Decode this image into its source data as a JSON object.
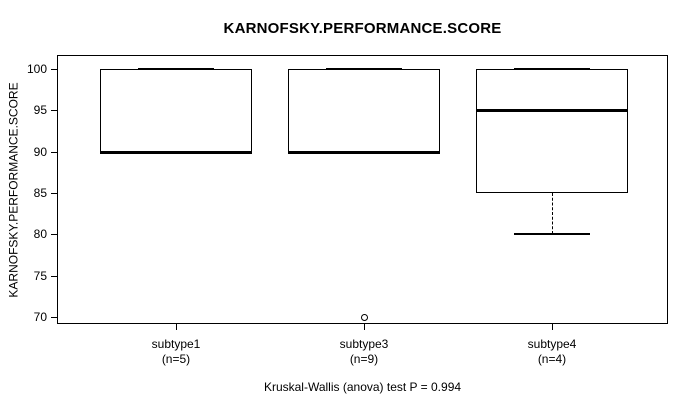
{
  "chart_data": {
    "type": "boxplot",
    "title": "KARNOFSKY.PERFORMANCE.SCORE",
    "ylabel": "KARNOFSKY.PERFORMANCE.SCORE",
    "caption": "Kruskal-Wallis (anova) test P = 0.994",
    "yticks": [
      100,
      95,
      90,
      85,
      80,
      75,
      70
    ],
    "ylim": [
      68.8,
      101.8
    ],
    "grid": false,
    "legend": null,
    "groups": [
      {
        "label": "subtype1",
        "count_label": "(n=5)",
        "q1": 90,
        "median": 90,
        "q3": 100,
        "whisker_low": 90,
        "whisker_high": 100,
        "outliers": []
      },
      {
        "label": "subtype3",
        "count_label": "(n=9)",
        "q1": 90,
        "median": 90,
        "q3": 100,
        "whisker_low": 90,
        "whisker_high": 100,
        "outliers": [
          70
        ]
      },
      {
        "label": "subtype4",
        "count_label": "(n=4)",
        "q1": 85,
        "median": 95,
        "q3": 100,
        "whisker_low": 80,
        "whisker_high": 100,
        "outliers": []
      }
    ]
  },
  "colors": {
    "line": "#000000",
    "background": "#ffffff"
  }
}
